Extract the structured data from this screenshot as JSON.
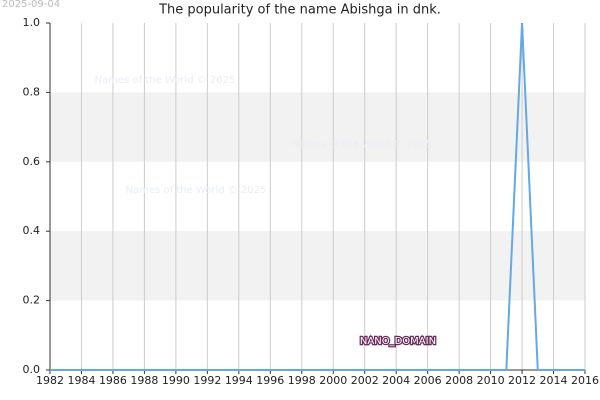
{
  "chart_data": {
    "type": "line",
    "title": "The popularity of the name Abishga in dnk.",
    "date_stamp": "2025-09-04",
    "annotations": [
      "Names of the World © 2025",
      "Names of the World © 2025",
      "Names of the World © 2025",
      "NANO_DOMAIN"
    ],
    "x": [
      1982,
      1983,
      1984,
      1985,
      1986,
      1987,
      1988,
      1989,
      1990,
      1991,
      1992,
      1993,
      1994,
      1995,
      1996,
      1997,
      1998,
      1999,
      2000,
      2001,
      2002,
      2003,
      2004,
      2005,
      2006,
      2007,
      2008,
      2009,
      2010,
      2011,
      2012,
      2013,
      2014,
      2015,
      2016
    ],
    "series": [
      {
        "color": "#64a8e8",
        "values": [
          0,
          0,
          0,
          0,
          0,
          0,
          0,
          0,
          0,
          0,
          0,
          0,
          0,
          0,
          0,
          0,
          0,
          0,
          0,
          0,
          0,
          0,
          0,
          0,
          0,
          0,
          0,
          0,
          0,
          0,
          1,
          0,
          0,
          0,
          0
        ]
      }
    ],
    "xlim": [
      1982,
      2016
    ],
    "xticks": [
      1982,
      1984,
      1986,
      1988,
      1990,
      1992,
      1994,
      1996,
      1998,
      2000,
      2002,
      2004,
      2006,
      2008,
      2010,
      2012,
      2014,
      2016
    ],
    "ylim": [
      0,
      1
    ],
    "yticks": [
      {
        "value": 0,
        "label": "0.0"
      },
      0.2,
      0.4,
      0.6,
      0.8,
      {
        "value": 1,
        "label": "1.0"
      }
    ],
    "grid": true
  }
}
